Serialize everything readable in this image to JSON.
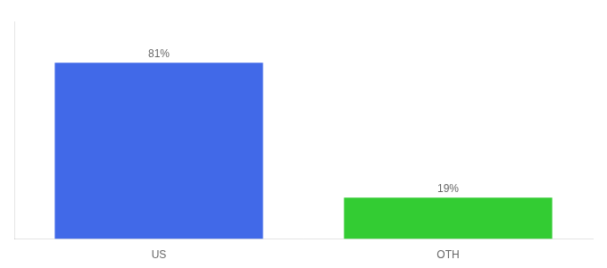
{
  "chart_data": {
    "type": "bar",
    "categories": [
      "US",
      "OTH"
    ],
    "values": [
      81,
      19
    ],
    "value_labels": [
      "81%",
      "19%"
    ],
    "colors": [
      "#4169e8",
      "#33cc33"
    ],
    "ylim": [
      0,
      100
    ],
    "grid": false,
    "data_labels": true,
    "tick_labels": "x"
  }
}
